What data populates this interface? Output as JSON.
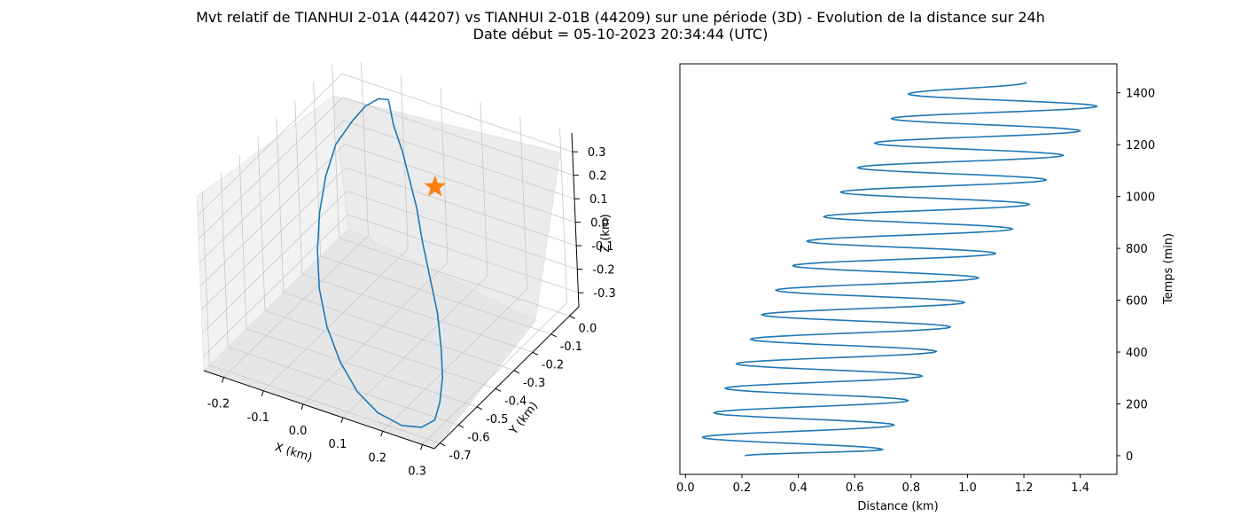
{
  "title": "Mvt relatif de TIANHUI 2-01A (44207) vs TIANHUI 2-01B (44209) sur une période (3D) - Evolution de la distance sur 24h",
  "subtitle": "Date début = 05-10-2023 20:34:44 (UTC)",
  "colors": {
    "line": "#1f77b4",
    "marker": "#ff7f0e",
    "pane": "#f2f2f2",
    "grid": "#c8c8c8"
  },
  "chart_data": [
    {
      "type": "line",
      "projection": "3d",
      "xlabel": "X (km)",
      "ylabel": "Y (km)",
      "zlabel": "Z (km)",
      "xlim": [
        -0.25,
        0.33
      ],
      "ylim": [
        -0.73,
        0.05
      ],
      "zlim": [
        -0.36,
        0.38
      ],
      "xticks": [
        "-0.2",
        "-0.1",
        "0.0",
        "0.1",
        "0.2",
        "0.3"
      ],
      "yticks": [
        "-0.7",
        "-0.6",
        "-0.5",
        "-0.4",
        "-0.3",
        "-0.2",
        "-0.1",
        "0.0"
      ],
      "zticks": [
        "-0.3",
        "-0.2",
        "-0.1",
        "0.0",
        "0.1",
        "0.2",
        "0.3"
      ],
      "grid": true,
      "marker": {
        "symbol": "star",
        "x": 0.0,
        "y": 0.0,
        "z": 0.0
      },
      "series": [
        {
          "x": [
            -0.1,
            -0.07,
            -0.03,
            0.01,
            0.05,
            0.09,
            0.14,
            0.19,
            0.23,
            0.26,
            0.28,
            0.29,
            0.27,
            0.23,
            0.17,
            0.11,
            0.05,
            -0.01,
            -0.06,
            -0.1,
            -0.13,
            -0.15,
            -0.16,
            -0.15,
            -0.14,
            -0.12,
            -0.1
          ],
          "y": [
            -0.02,
            -0.06,
            -0.1,
            -0.15,
            -0.2,
            -0.26,
            -0.33,
            -0.4,
            -0.47,
            -0.53,
            -0.59,
            -0.64,
            -0.67,
            -0.69,
            -0.69,
            -0.67,
            -0.63,
            -0.57,
            -0.5,
            -0.42,
            -0.34,
            -0.26,
            -0.18,
            -0.11,
            -0.06,
            -0.03,
            -0.02
          ],
          "z": [
            0.33,
            0.27,
            0.21,
            0.15,
            0.09,
            0.02,
            -0.05,
            -0.12,
            -0.19,
            -0.25,
            -0.3,
            -0.33,
            -0.35,
            -0.35,
            -0.33,
            -0.29,
            -0.23,
            -0.16,
            -0.08,
            0.0,
            0.08,
            0.16,
            0.23,
            0.28,
            0.31,
            0.33,
            0.33
          ]
        }
      ]
    },
    {
      "type": "line",
      "xlabel": "Distance (km)",
      "ylabel": "Temps (min)",
      "xlim": [
        -0.02,
        1.53
      ],
      "ylim": [
        -72,
        1512
      ],
      "xticks": [
        0.0,
        0.2,
        0.4,
        0.6,
        0.8,
        1.0,
        1.2,
        1.4
      ],
      "yticks": [
        0,
        200,
        400,
        600,
        800,
        1000,
        1200,
        1400
      ],
      "ytick_position": "right",
      "grid": false,
      "series": [
        {
          "period_min": 94.6,
          "x_min": [
            0.06,
            0.1,
            0.14,
            0.18,
            0.23,
            0.27,
            0.32,
            0.38,
            0.43,
            0.49,
            0.55,
            0.61,
            0.67,
            0.73,
            0.79
          ],
          "x_max": [
            0.7,
            0.74,
            0.79,
            0.84,
            0.89,
            0.94,
            0.99,
            1.04,
            1.1,
            1.16,
            1.22,
            1.28,
            1.34,
            1.4,
            1.46
          ],
          "start": {
            "x": 0.21,
            "y": 0
          },
          "end": {
            "x": 1.21,
            "y": 1440
          }
        }
      ]
    }
  ]
}
